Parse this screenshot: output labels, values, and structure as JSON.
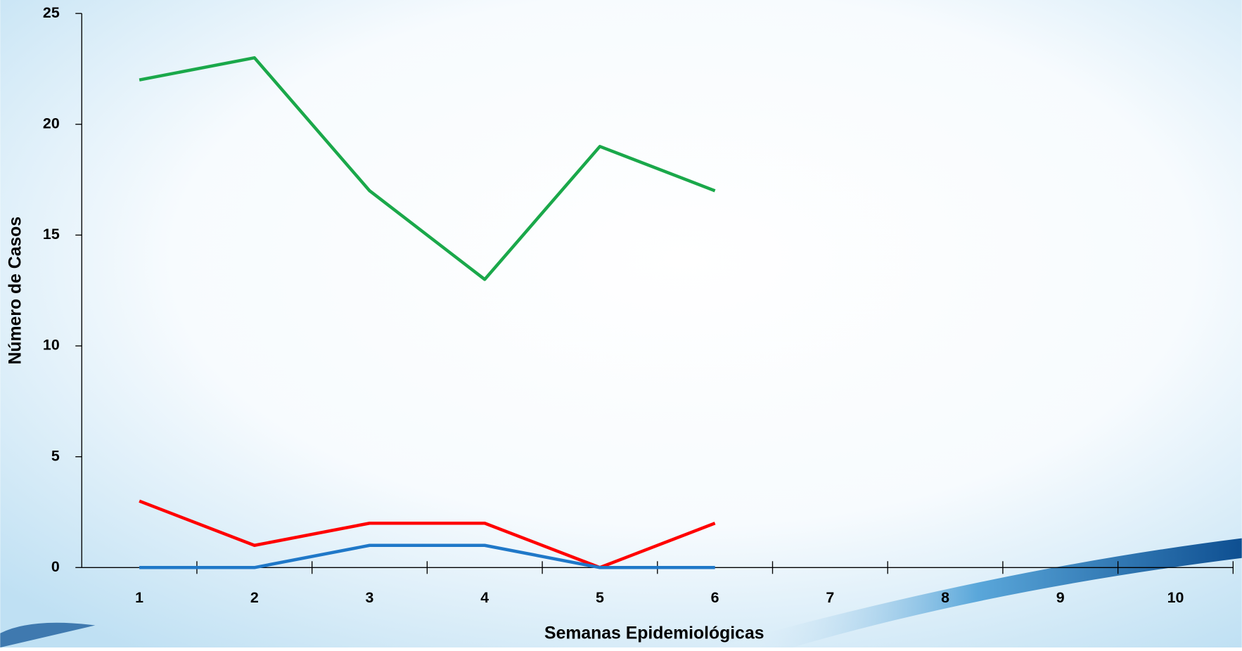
{
  "chart_data": {
    "type": "line",
    "x_label": "Semanas Epidemiológicas",
    "y_label": "Número de Casos",
    "categories": [
      "1",
      "2",
      "3",
      "4",
      "5",
      "6",
      "7",
      "8",
      "9",
      "10"
    ],
    "series": [
      {
        "color": "#1aa84a",
        "values": [
          22,
          23,
          17,
          13,
          19,
          17,
          null,
          null,
          null,
          null
        ]
      },
      {
        "color": "#ff0000",
        "values": [
          3,
          1,
          2,
          2,
          0,
          2,
          null,
          null,
          null,
          null
        ]
      },
      {
        "color": "#1f78c8",
        "values": [
          0,
          0,
          1,
          1,
          0,
          0,
          null,
          null,
          null,
          null
        ]
      }
    ],
    "ylim": [
      0,
      25
    ],
    "yticks": [
      0,
      5,
      10,
      15,
      20,
      25
    ],
    "grid": false
  }
}
